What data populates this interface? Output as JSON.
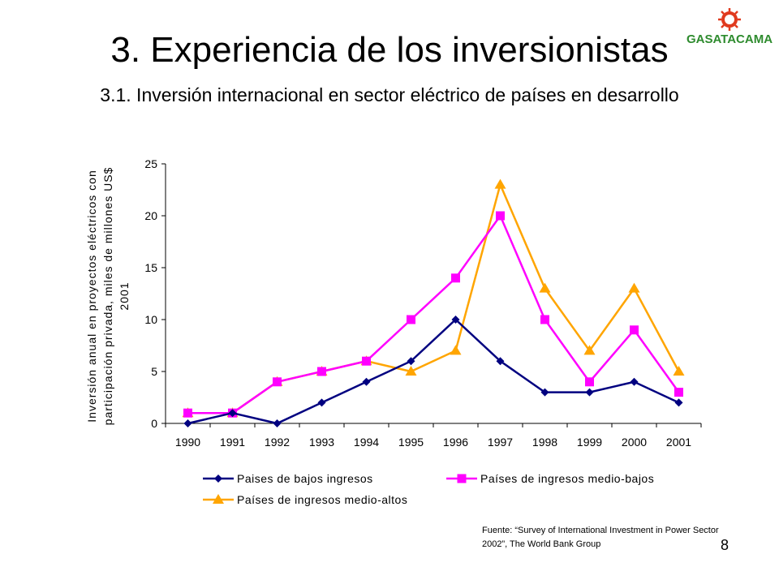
{
  "slide": {
    "title": "3. Experiencia de los inversionistas",
    "subtitle": "3.1. Inversión internacional en sector eléctrico de países en desarrollo",
    "logo_text": "GASATACAMA",
    "source": "Fuente: “Survey of International Investment in Power Sector 2002”, The World Bank Group",
    "page_number": "8"
  },
  "chart_data": {
    "type": "line",
    "title": "",
    "xlabel": "",
    "ylabel_lines": [
      "Inversión anual en proyectos eléctricos con",
      "participación privada, miles de millones US$",
      "2001"
    ],
    "categories": [
      "1990",
      "1991",
      "1992",
      "1993",
      "1994",
      "1995",
      "1996",
      "1997",
      "1998",
      "1999",
      "2000",
      "2001"
    ],
    "ylim": [
      0,
      25
    ],
    "yticks": [
      0,
      5,
      10,
      15,
      20,
      25
    ],
    "grid": false,
    "legend_position": "bottom",
    "series": [
      {
        "name": "Paises de bajos ingresos",
        "color": "#000080",
        "marker": "diamond",
        "values": [
          0,
          1,
          0,
          2,
          4,
          6,
          10,
          6,
          3,
          3,
          4,
          2
        ]
      },
      {
        "name": "Países de ingresos medio-bajos",
        "color": "#ff00ff",
        "marker": "square",
        "values": [
          1,
          1,
          4,
          5,
          6,
          10,
          14,
          20,
          10,
          4,
          9,
          3
        ]
      },
      {
        "name": "Países de ingresos medio-altos",
        "color": "#ffa500",
        "marker": "triangle",
        "values": [
          1,
          1,
          4,
          5,
          6,
          5,
          7,
          23,
          13,
          7,
          13,
          5
        ]
      }
    ]
  }
}
